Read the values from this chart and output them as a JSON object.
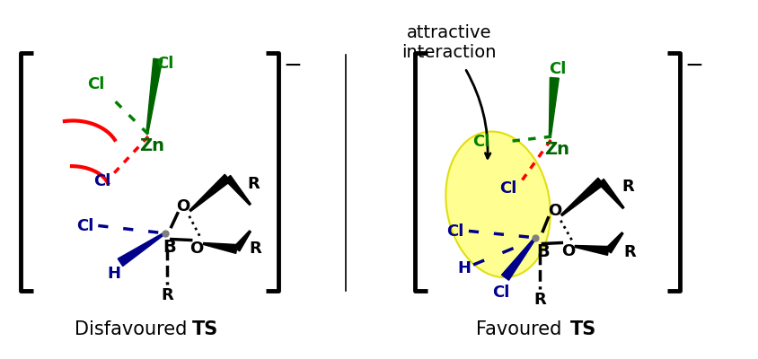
{
  "background_color": "#ffffff",
  "label_disfavoured": "Disfavoured ",
  "label_disfavoured_bold": "TS",
  "label_favoured": "Favoured ",
  "label_favoured_bold": "TS",
  "annotation_text1": "attractive",
  "annotation_text2": "interaction",
  "fig_width": 8.44,
  "fig_height": 4.0
}
